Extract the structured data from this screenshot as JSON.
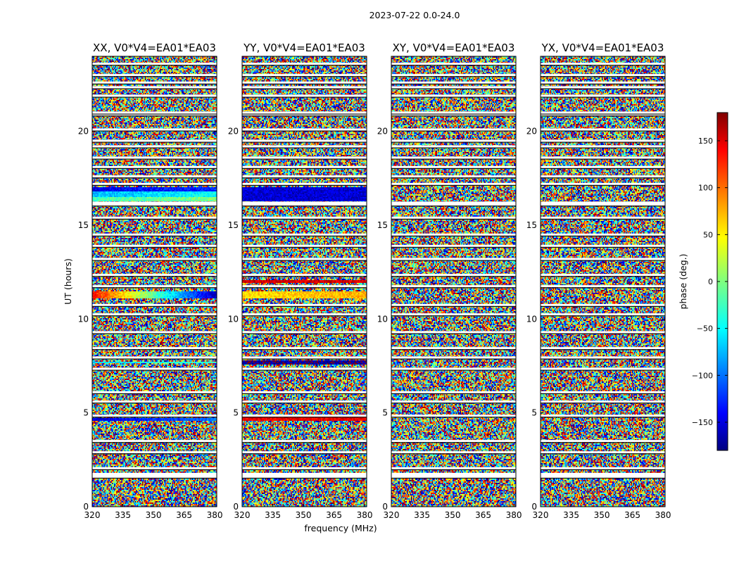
{
  "figure": {
    "suptitle": "2023-07-22 0.0-24.0",
    "xlabel": "frequency (MHz)",
    "ylabel": "UT (hours)"
  },
  "colorbar": {
    "label": "phase (deg.)",
    "range": [
      -180,
      180
    ],
    "ticks": [
      "150",
      "100",
      "50",
      "0",
      "−50",
      "−100",
      "−150"
    ],
    "tick_values": [
      150,
      100,
      50,
      0,
      -50,
      -100,
      -150
    ],
    "colormap": "jet",
    "colors": [
      "#000080",
      "#0000ff",
      "#00ffff",
      "#7fff7f",
      "#ffff00",
      "#ff0000",
      "#800000"
    ]
  },
  "chart_data": [
    {
      "type": "heatmap",
      "title": "XX, V0*V4=EA01*EA03",
      "x_range_mhz": [
        320,
        381
      ],
      "y_range_hours": [
        0,
        24
      ],
      "x_ticks": [
        "320",
        "335",
        "350",
        "365",
        "380"
      ],
      "x_tick_values": [
        320,
        335,
        350,
        365,
        380
      ],
      "y_ticks": [
        "0",
        "5",
        "10",
        "15",
        "20"
      ],
      "y_tick_values": [
        0,
        5,
        10,
        15,
        20
      ],
      "value": "phase (deg.)",
      "coherent_bands": [
        {
          "ut_hours": [
            11.1,
            11.5
          ],
          "phase_deg": 130,
          "trend_deg": -290
        },
        {
          "ut_hours": [
            4.55,
            4.75
          ],
          "phase_deg": -150,
          "trend_deg": 60
        },
        {
          "ut_hours": [
            16.8,
            17.0
          ],
          "phase_deg": -140,
          "trend_deg": 20
        },
        {
          "ut_hours": [
            16.5,
            16.8
          ],
          "phase_deg": -70,
          "trend_deg": 30
        },
        {
          "ut_hours": [
            16.3,
            16.5
          ],
          "phase_deg": -20,
          "trend_deg": 20
        },
        {
          "ut_hours": [
            7.65,
            7.75
          ],
          "phase_deg": -60,
          "trend_deg": 40
        }
      ]
    },
    {
      "type": "heatmap",
      "title": "YY, V0*V4=EA01*EA03",
      "x_range_mhz": [
        320,
        381
      ],
      "y_range_hours": [
        0,
        24
      ],
      "x_ticks": [
        "320",
        "335",
        "350",
        "365",
        "380"
      ],
      "x_tick_values": [
        320,
        335,
        350,
        365,
        380
      ],
      "y_ticks": [
        "0",
        "5",
        "10",
        "15",
        "20"
      ],
      "y_tick_values": [
        0,
        5,
        10,
        15,
        20
      ],
      "value": "phase (deg.)",
      "coherent_bands": [
        {
          "ut_hours": [
            11.1,
            11.5
          ],
          "phase_deg": 55,
          "trend_deg": 20
        },
        {
          "ut_hours": [
            4.55,
            4.8
          ],
          "phase_deg": 140,
          "trend_deg": 0
        },
        {
          "ut_hours": [
            16.3,
            17.0
          ],
          "phase_deg": -150,
          "trend_deg": 0
        },
        {
          "ut_hours": [
            7.6,
            7.8
          ],
          "phase_deg": -170,
          "trend_deg": 0
        },
        {
          "ut_hours": [
            11.9,
            12.1
          ],
          "phase_deg": 150,
          "trend_deg": 0
        }
      ]
    },
    {
      "type": "heatmap",
      "title": "XY, V0*V4=EA01*EA03",
      "x_range_mhz": [
        320,
        381
      ],
      "y_range_hours": [
        0,
        24
      ],
      "x_ticks": [
        "320",
        "335",
        "350",
        "365",
        "380"
      ],
      "x_tick_values": [
        320,
        335,
        350,
        365,
        380
      ],
      "y_ticks": [
        "0",
        "5",
        "10",
        "15",
        "20"
      ],
      "y_tick_values": [
        0,
        5,
        10,
        15,
        20
      ],
      "value": "phase (deg.)",
      "coherent_bands": []
    },
    {
      "type": "heatmap",
      "title": "YX, V0*V4=EA01*EA03",
      "x_range_mhz": [
        320,
        381
      ],
      "y_range_hours": [
        0,
        24
      ],
      "x_ticks": [
        "320",
        "335",
        "350",
        "365",
        "380"
      ],
      "x_tick_values": [
        320,
        335,
        350,
        365,
        380
      ],
      "y_ticks": [
        "0",
        "5",
        "10",
        "15",
        "20"
      ],
      "y_tick_values": [
        0,
        5,
        10,
        15,
        20
      ],
      "value": "phase (deg.)",
      "coherent_bands": []
    }
  ],
  "flagged_ut_hours": [
    1.6,
    1.75,
    2.05,
    2.9,
    3.5,
    4.85,
    5.6,
    6.1,
    7.35,
    7.95,
    8.45,
    9.3,
    10.25,
    10.75,
    11.75,
    12.35,
    13.2,
    13.9,
    14.5,
    15.4,
    16.1,
    16.2,
    17.2,
    17.6,
    18.1,
    18.6,
    19.2,
    19.5,
    20.1,
    20.9,
    21.0,
    21.9,
    22.35,
    22.6,
    23.0,
    23.6
  ]
}
